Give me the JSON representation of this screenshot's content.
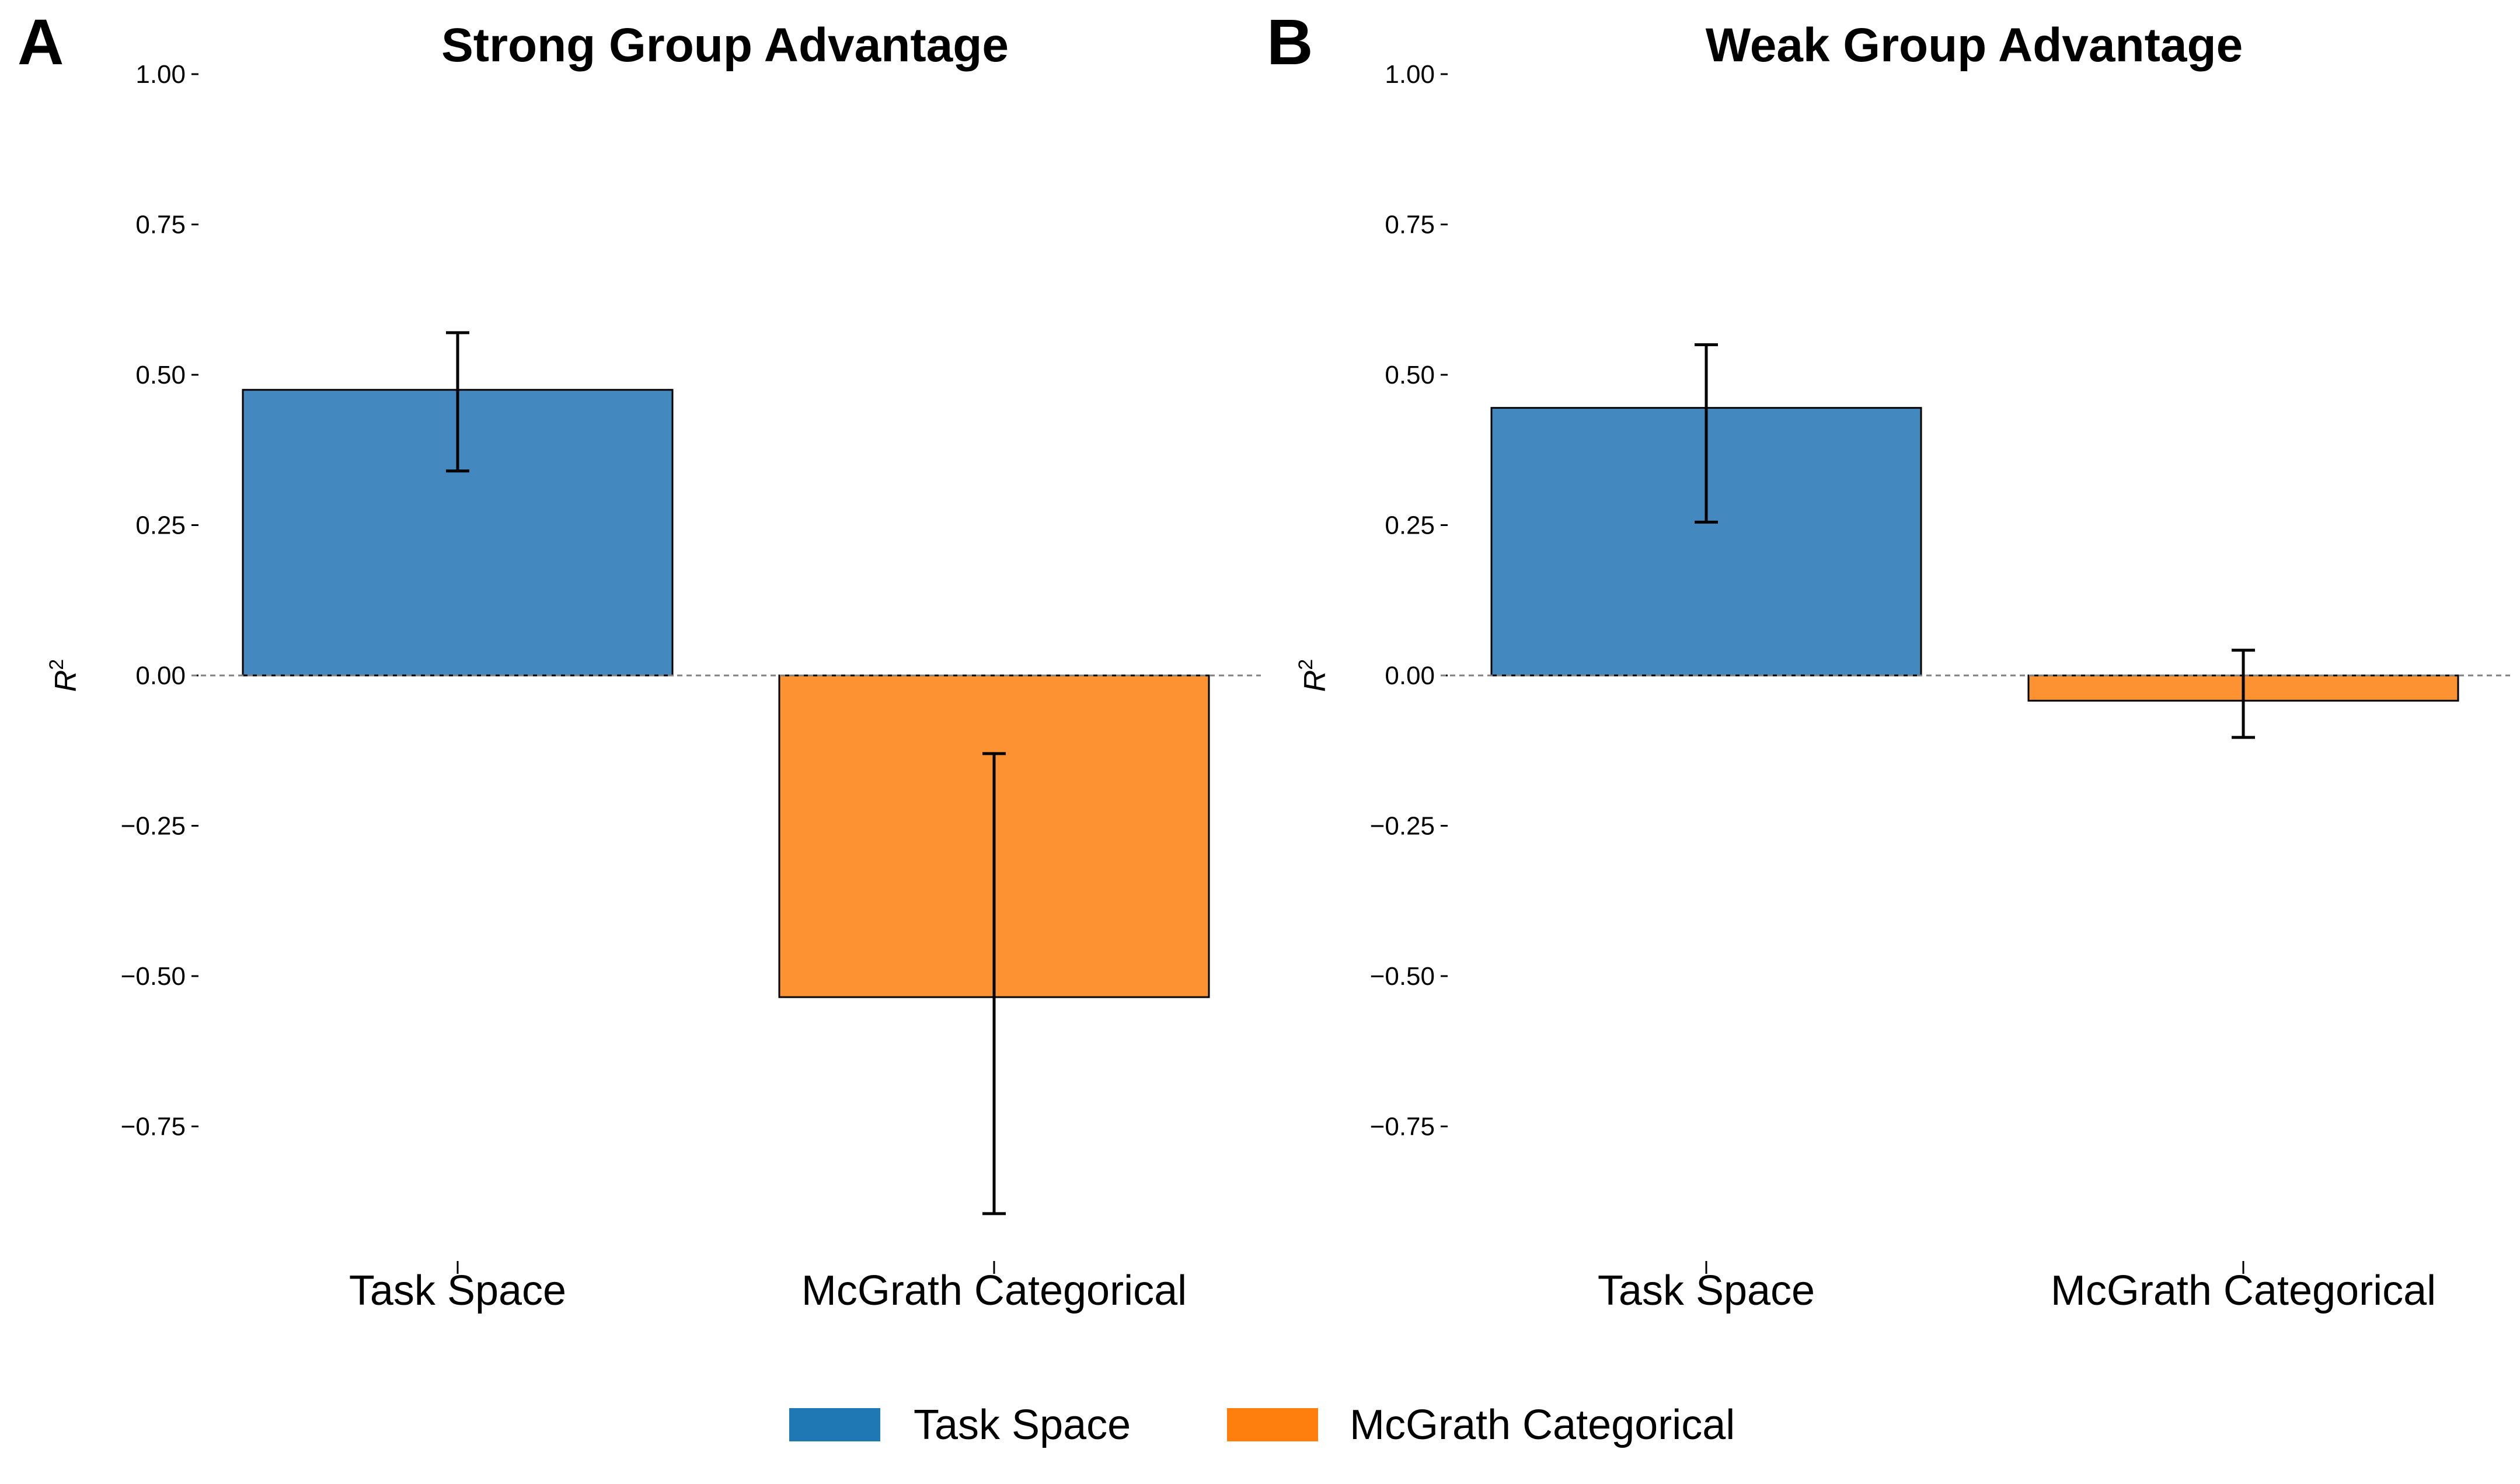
{
  "chart_data": [
    {
      "type": "bar",
      "panel_label": "A",
      "title": "Strong Group Advantage",
      "ylabel": "R",
      "ylabel_superscript": "2",
      "categories": [
        "Task Space",
        "McGrath Categorical"
      ],
      "values": [
        0.475,
        -0.535
      ],
      "error_bars": [
        [
          0.34,
          0.57
        ],
        [
          -0.895,
          -0.13
        ]
      ],
      "colors": [
        "#4389bf",
        "#fd9232"
      ],
      "ylim": [
        -0.92,
        1.0
      ],
      "yticks": [
        1.0,
        0.75,
        0.5,
        0.25,
        0.0,
        -0.25,
        -0.5,
        -0.75
      ],
      "ytick_labels": [
        "1.00",
        "0.75",
        "0.50",
        "0.25",
        "0.00",
        "−0.25",
        "−0.50",
        "−0.75"
      ],
      "reference_line": 0.0,
      "grid": false
    },
    {
      "type": "bar",
      "panel_label": "B",
      "title": "Weak Group Advantage",
      "ylabel": "R",
      "ylabel_superscript": "2",
      "categories": [
        "Task Space",
        "McGrath Categorical"
      ],
      "values": [
        0.445,
        -0.042
      ],
      "error_bars": [
        [
          0.255,
          0.55
        ],
        [
          -0.103,
          0.042
        ]
      ],
      "colors": [
        "#4389bf",
        "#fd9232"
      ],
      "ylim": [
        -0.92,
        1.0
      ],
      "yticks": [
        1.0,
        0.75,
        0.5,
        0.25,
        0.0,
        -0.25,
        -0.5,
        -0.75
      ],
      "ytick_labels": [
        "1.00",
        "0.75",
        "0.50",
        "0.25",
        "0.00",
        "−0.25",
        "−0.50",
        "−0.75"
      ],
      "reference_line": 0.0,
      "grid": false
    }
  ],
  "legend": {
    "placement": "bottom-center",
    "items": [
      {
        "label": "Task Space",
        "color": "#1f77b4"
      },
      {
        "label": "McGrath Categorical",
        "color": "#ff7f0e"
      }
    ]
  }
}
